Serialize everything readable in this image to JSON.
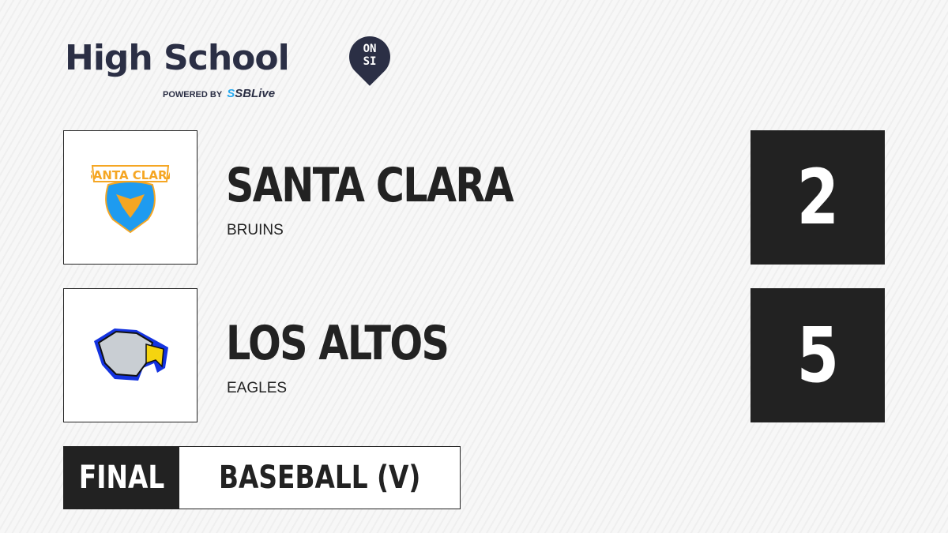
{
  "brand": {
    "title": "High School",
    "badge_line1": "ON",
    "badge_line2": "SI",
    "powered_by": "POWERED BY",
    "partner_prefix": "S",
    "partner": "SBLive"
  },
  "teams": [
    {
      "name": "SANTA CLARA",
      "mascot": "BRUINS",
      "score": "2",
      "logo_text": "SANTA CLARA",
      "colors": {
        "primary": "#1e9bf0",
        "secondary": "#f5a623"
      }
    },
    {
      "name": "LOS ALTOS",
      "mascot": "EAGLES",
      "score": "5",
      "colors": {
        "primary": "#1433e0",
        "secondary": "#f5d40f"
      }
    }
  ],
  "status": {
    "state": "FINAL",
    "sport": "BASEBALL (V)"
  }
}
